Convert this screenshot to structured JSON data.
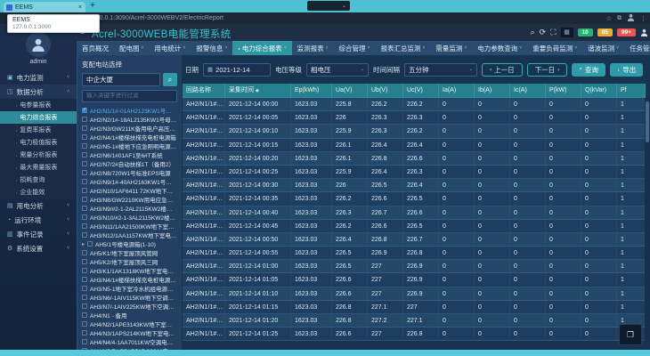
{
  "browser": {
    "tab_title": "EEMS",
    "close_tab": "×",
    "new_tab_label": "+",
    "tooltip": {
      "name": "EEMS",
      "origin": "127.0.0.1:3090"
    },
    "url": "127.0.0.1:3090/Acrel-3000WEBV2/ElectricReport"
  },
  "header": {
    "title": "Acrel-3000WEB电能管理系统",
    "alarm_green": "10",
    "alarm_yellow": "85",
    "alarm_red": "99+"
  },
  "menu": {
    "items": [
      {
        "label": "首页概况",
        "caret": false,
        "active": false
      },
      {
        "label": "配电图",
        "caret": true,
        "active": false
      },
      {
        "label": "用电统计",
        "caret": true,
        "active": false
      },
      {
        "label": "报警信息",
        "caret": true,
        "active": false
      },
      {
        "label": "电力综合报表",
        "caret": true,
        "active": true
      },
      {
        "label": "监测报表",
        "caret": true,
        "active": false
      },
      {
        "label": "综合管理",
        "caret": true,
        "active": false
      },
      {
        "label": "报表汇总监测",
        "caret": true,
        "active": false
      },
      {
        "label": "需量监测",
        "caret": true,
        "active": false
      },
      {
        "label": "电力参数查询",
        "caret": true,
        "active": false
      },
      {
        "label": "重要负荷监测",
        "caret": true,
        "active": false
      },
      {
        "label": "谐波监测",
        "caret": true,
        "active": false
      },
      {
        "label": "任务管理",
        "caret": true,
        "active": false
      },
      {
        "label": "分时段统计",
        "caret": true,
        "active": false
      },
      {
        "label": "同比分析",
        "caret": true,
        "active": false
      }
    ]
  },
  "sidebar": {
    "user": "admin",
    "groups": [
      {
        "icon": "power-monitor-icon",
        "glyph": "▣",
        "label": "电力监测",
        "expanded": false,
        "children": []
      },
      {
        "icon": "data-analysis-icon",
        "glyph": "◫",
        "label": "数据分析",
        "expanded": true,
        "children": [
          {
            "label": "电参量报表",
            "active": false
          },
          {
            "label": "电力综合报表",
            "active": true
          },
          {
            "label": "复费率报表",
            "active": false
          },
          {
            "label": "电力极值报表",
            "active": false
          },
          {
            "label": "需量分析报表",
            "active": false
          },
          {
            "label": "最大需量报表",
            "active": false
          },
          {
            "label": "损耗查询",
            "active": false
          },
          {
            "label": "企业能效",
            "active": false
          }
        ]
      },
      {
        "icon": "usage-analysis-icon",
        "glyph": "▤",
        "label": "用电分析",
        "expanded": false,
        "children": []
      },
      {
        "icon": "environment-icon",
        "glyph": "◔",
        "label": "运行环境",
        "expanded": false,
        "children": []
      },
      {
        "icon": "event-log-icon",
        "glyph": "▥",
        "label": "事件记录",
        "expanded": false,
        "children": []
      },
      {
        "icon": "settings-icon",
        "glyph": "⚙",
        "label": "系统设置",
        "expanded": false,
        "children": []
      }
    ]
  },
  "tree": {
    "title": "变配电站选择",
    "station": "中企大厦",
    "filter_placeholder": "输入关键字进行过滤",
    "items": [
      {
        "label": "AH2/N1/1#-01AH2123KW1号母线电源箱",
        "checked": true,
        "expandable": false
      },
      {
        "label": "AH2/N2/1#-18AL2135KW1号母线电源箱",
        "checked": false,
        "expandable": false
      },
      {
        "label": "AH2/N3/GW211K备用电户高压直流电源",
        "checked": false,
        "expandable": false
      },
      {
        "label": "AH2/N4/1#楼梯扶梯充电桩电源箱",
        "checked": false,
        "expandable": false
      },
      {
        "label": "AH2/N5-1#楼地下应急照明电源（未连接）",
        "checked": false,
        "expandable": false
      },
      {
        "label": "AH2/N6/1#01AF1至6#T系统",
        "checked": false,
        "expandable": false
      },
      {
        "label": "AH2/N7/2#自动扶梯1T（备用2）",
        "checked": false,
        "expandable": false
      },
      {
        "label": "AH2/N8/720W1号标准EPS电源",
        "checked": false,
        "expandable": false
      },
      {
        "label": "AH2/N9/1#-40AH2163KW1号母线电源箱",
        "checked": false,
        "expandable": false
      },
      {
        "label": "AH2/N10/1AF6411 72KW地下室电源箱",
        "checked": false,
        "expandable": false
      },
      {
        "label": "AH3/N8/GW2210KW用电应急电源箱",
        "checked": false,
        "expandable": false
      },
      {
        "label": "AH3/N9/#2-1-2AL2115KW2楼配电总箱",
        "checked": false,
        "expandable": false
      },
      {
        "label": "AH3/N10/#2-1-3AL2115KW2楼配电总箱",
        "checked": false,
        "expandable": false
      },
      {
        "label": "AH3/N11/1AA21500KW地下室电源箱",
        "checked": false,
        "expandable": false
      },
      {
        "label": "AH3/N12/1AA1157KW地下室电源箱",
        "checked": false,
        "expandable": false
      },
      {
        "label": "AH5/1号楼电源箱(1-10)",
        "checked": false,
        "expandable": true
      },
      {
        "label": "AH5/K1/地下室屋顶风管网",
        "checked": false,
        "expandable": false
      },
      {
        "label": "AH5/K2/地下室屋顶风三网",
        "checked": false,
        "expandable": false
      },
      {
        "label": "AH3/K1/1AK1318KW地下室电源箱",
        "checked": false,
        "expandable": false
      },
      {
        "label": "AH3/N4/1#楼梯扶梯充电桩电源箱（未连）",
        "checked": false,
        "expandable": false
      },
      {
        "label": "AH3/N5-1地下室冷水机组电源箱（备用）",
        "checked": false,
        "expandable": false
      },
      {
        "label": "AH3/N6/-1AIV115KW地下空调电源箱",
        "checked": false,
        "expandable": false
      },
      {
        "label": "AH3/N7/-1AIV225KW地下空调电源箱",
        "checked": false,
        "expandable": false
      },
      {
        "label": "AH4/N1 - 备用",
        "checked": false,
        "expandable": false
      },
      {
        "label": "AH4/N2/1APE3143KW地下室电源箱",
        "checked": false,
        "expandable": false
      },
      {
        "label": "AH4/N3/1APS214KW地下室电源箱",
        "checked": false,
        "expandable": false
      },
      {
        "label": "AH4/N4/4-1AA7011KW空调电源箱",
        "checked": false,
        "expandable": false
      },
      {
        "label": "AH4/N5/7#-B5AP517-3234#电源箱",
        "checked": false,
        "expandable": false
      }
    ]
  },
  "toolbar": {
    "date_label": "日期",
    "date_value": "2021-12-14",
    "voltage_label": "电压等级",
    "voltage_value": "相电压",
    "interval_label": "时间间隔",
    "interval_value": "五分钟",
    "prev_label": "上一日",
    "next_label": "下一日",
    "query_label": "查询",
    "export_label": "导出"
  },
  "table": {
    "columns": [
      "回路名称",
      "采集时间",
      "Ep(kWh)",
      "Ua(V)",
      "Ub(V)",
      "Uc(V)",
      "Ia(A)",
      "Ib(A)",
      "Ic(A)",
      "P(kW)",
      "Q(kVar)",
      "Pf"
    ],
    "rows": [
      [
        "AH2/N1/1#-01AH2123KW1号母线电源箱",
        "2021-12-14 00:00",
        "1623.03",
        "225.8",
        "226.2",
        "226.2",
        "0",
        "0",
        "0",
        "0",
        "0",
        "1"
      ],
      [
        "AH2/N1/1#-01AH2123KW1号母线电源箱",
        "2021-12-14 00:05",
        "1623.03",
        "226",
        "226.3",
        "226.3",
        "0",
        "0",
        "0",
        "0",
        "0",
        "1"
      ],
      [
        "AH2/N1/1#-01AH2123KW1号母线电源箱",
        "2021-12-14 00:10",
        "1623.03",
        "225.9",
        "226.3",
        "226.2",
        "0",
        "0",
        "0",
        "0",
        "0",
        "1"
      ],
      [
        "AH2/N1/1#-01AH2123KW1号母线电源箱",
        "2021-12-14 00:15",
        "1623.03",
        "226.1",
        "226.4",
        "226.4",
        "0",
        "0",
        "0",
        "0",
        "0",
        "1"
      ],
      [
        "AH2/N1/1#-01AH2123KW1号母线电源箱",
        "2021-12-14 00:20",
        "1623.03",
        "226.1",
        "226.8",
        "226.6",
        "0",
        "0",
        "0",
        "0",
        "0",
        "1"
      ],
      [
        "AH2/N1/1#-01AH2123KW1号母线电源箱",
        "2021-12-14 00:25",
        "1623.03",
        "225.9",
        "226.4",
        "226.3",
        "0",
        "0",
        "0",
        "0",
        "0",
        "1"
      ],
      [
        "AH2/N1/1#-01AH2123KW1号母线电源箱",
        "2021-12-14 00:30",
        "1623.03",
        "226",
        "226.5",
        "226.4",
        "0",
        "0",
        "0",
        "0",
        "0",
        "1"
      ],
      [
        "AH2/N1/1#-01AH2123KW1号母线电源箱",
        "2021-12-14 00:35",
        "1623.03",
        "226.2",
        "226.6",
        "226.5",
        "0",
        "0",
        "0",
        "0",
        "0",
        "1"
      ],
      [
        "AH2/N1/1#-01AH2123KW1号母线电源箱",
        "2021-12-14 00:40",
        "1623.03",
        "226.3",
        "226.7",
        "226.6",
        "0",
        "0",
        "0",
        "0",
        "0",
        "1"
      ],
      [
        "AH2/N1/1#-01AH2123KW1号母线电源箱",
        "2021-12-14 00:45",
        "1623.03",
        "226.2",
        "226.6",
        "226.5",
        "0",
        "0",
        "0",
        "0",
        "0",
        "1"
      ],
      [
        "AH2/N1/1#-01AH2123KW1号母线电源箱",
        "2021-12-14 00:50",
        "1623.03",
        "226.4",
        "226.8",
        "226.7",
        "0",
        "0",
        "0",
        "0",
        "0",
        "1"
      ],
      [
        "AH2/N1/1#-01AH2123KW1号母线电源箱",
        "2021-12-14 00:55",
        "1623.03",
        "226.5",
        "226.9",
        "226.8",
        "0",
        "0",
        "0",
        "0",
        "0",
        "1"
      ],
      [
        "AH2/N1/1#-01AH2123KW1号母线电源箱",
        "2021-12-14 01:00",
        "1623.03",
        "226.5",
        "227",
        "226.9",
        "0",
        "0",
        "0",
        "0",
        "0",
        "1"
      ],
      [
        "AH2/N1/1#-01AH2123KW1号母线电源箱",
        "2021-12-14 01:05",
        "1623.03",
        "226.6",
        "227",
        "226.9",
        "0",
        "0",
        "0",
        "0",
        "0",
        "1"
      ],
      [
        "AH2/N1/1#-01AH2123KW1号母线电源箱",
        "2021-12-14 01:10",
        "1623.03",
        "226.6",
        "227",
        "226.9",
        "0",
        "0",
        "0",
        "0",
        "0",
        "1"
      ],
      [
        "AH2/N1/1#-01AH2123KW1号母线电源箱",
        "2021-12-14 01:15",
        "1623.03",
        "226.8",
        "227.1",
        "227",
        "0",
        "0",
        "0",
        "0",
        "0",
        "1"
      ],
      [
        "AH2/N1/1#-01AH2123KW1号母线电源箱",
        "2021-12-14 01:20",
        "1623.03",
        "226.8",
        "227.2",
        "227.1",
        "0",
        "0",
        "0",
        "0",
        "0",
        "1"
      ],
      [
        "AH2/N1/1#-01AH2123KW1号母线电源箱",
        "2021-12-14 01:25",
        "1623.03",
        "226.6",
        "227",
        "226.8",
        "0",
        "0",
        "0",
        "0",
        "0",
        "1"
      ]
    ]
  },
  "colors": {
    "accent_teal": "#2f9ba8",
    "table_header": "#26818e",
    "tab_strip": "#4fc0d2",
    "menu_bar": "#2a4b70",
    "sidebar_bg": "#1d2f4e"
  }
}
